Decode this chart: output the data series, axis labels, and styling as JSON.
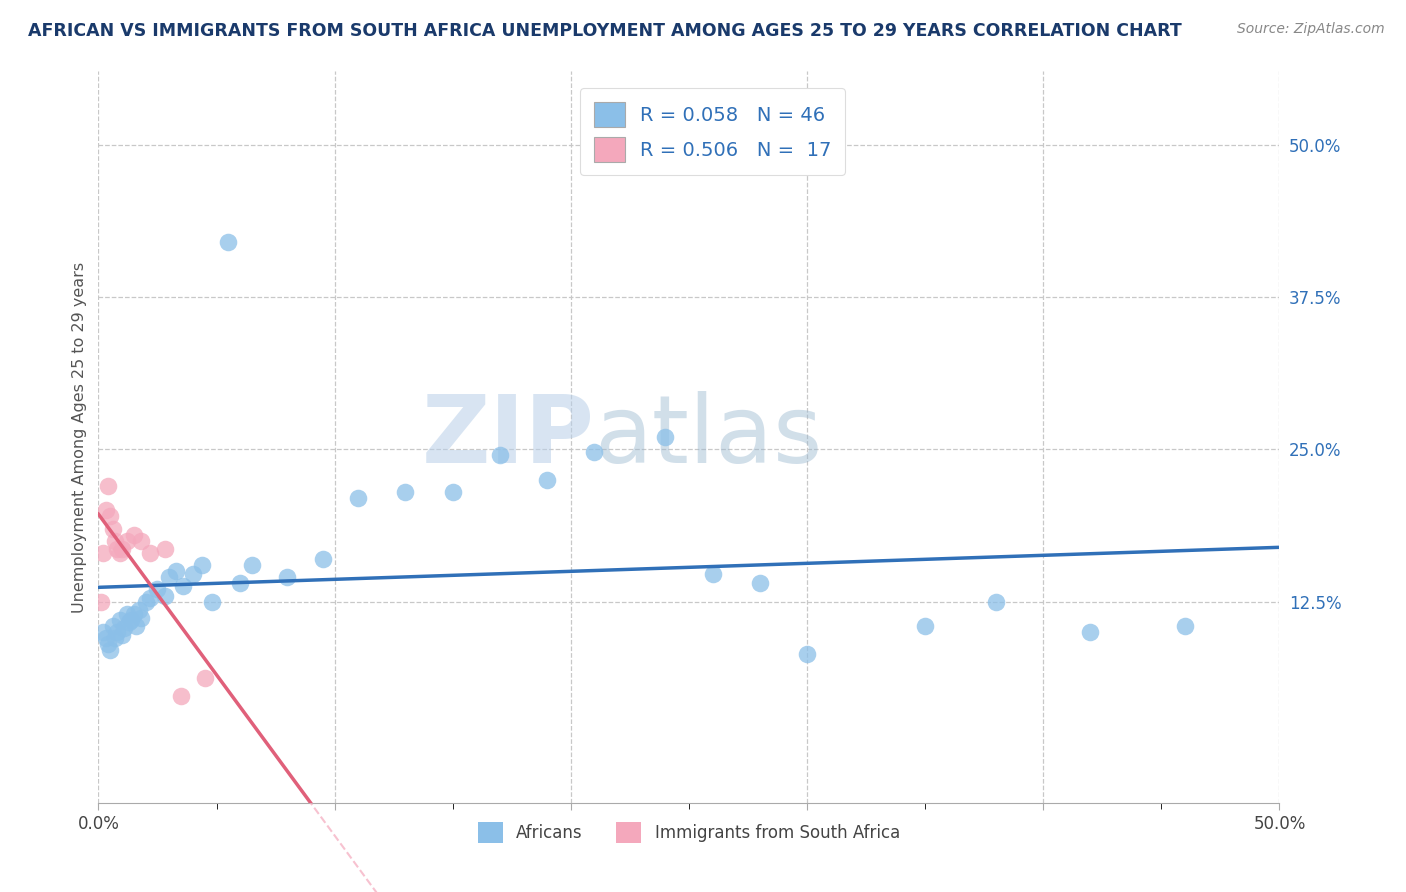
{
  "title": "AFRICAN VS IMMIGRANTS FROM SOUTH AFRICA UNEMPLOYMENT AMONG AGES 25 TO 29 YEARS CORRELATION CHART",
  "source": "Source: ZipAtlas.com",
  "ylabel": "Unemployment Among Ages 25 to 29 years",
  "xlim": [
    0.0,
    0.5
  ],
  "ylim": [
    -0.04,
    0.56
  ],
  "xtick_positions": [
    0.0,
    0.1,
    0.2,
    0.3,
    0.4,
    0.5
  ],
  "xtick_labels": [
    "0.0%",
    "",
    "",
    "",
    "",
    "50.0%"
  ],
  "ytick_positions": [
    0.125,
    0.25,
    0.375,
    0.5
  ],
  "ytick_labels": [
    "12.5%",
    "25.0%",
    "37.5%",
    "50.0%"
  ],
  "grid_color": "#c8c8c8",
  "background_color": "#ffffff",
  "africans_color": "#8bbfe8",
  "immigrants_color": "#f4a8bc",
  "africans_R": "0.058",
  "africans_N": "46",
  "immigrants_R": "0.506",
  "immigrants_N": "17",
  "africans_line_color": "#3070b8",
  "immigrants_line_color": "#e0607a",
  "watermark_zip": "ZIP",
  "watermark_atlas": "atlas",
  "legend_label_africans": "Africans",
  "legend_label_immigrants": "Immigrants from South Africa",
  "africans_x": [
    0.002,
    0.003,
    0.004,
    0.005,
    0.006,
    0.007,
    0.008,
    0.009,
    0.01,
    0.011,
    0.012,
    0.013,
    0.014,
    0.015,
    0.016,
    0.017,
    0.018,
    0.02,
    0.022,
    0.025,
    0.028,
    0.03,
    0.033,
    0.036,
    0.04,
    0.044,
    0.048,
    0.055,
    0.06,
    0.065,
    0.08,
    0.095,
    0.11,
    0.13,
    0.15,
    0.17,
    0.19,
    0.21,
    0.24,
    0.26,
    0.3,
    0.35,
    0.38,
    0.42,
    0.46,
    0.28
  ],
  "africans_y": [
    0.1,
    0.095,
    0.09,
    0.085,
    0.105,
    0.095,
    0.1,
    0.11,
    0.098,
    0.103,
    0.115,
    0.108,
    0.11,
    0.115,
    0.105,
    0.118,
    0.112,
    0.125,
    0.128,
    0.135,
    0.13,
    0.145,
    0.15,
    0.138,
    0.148,
    0.155,
    0.125,
    0.42,
    0.14,
    0.155,
    0.145,
    0.16,
    0.21,
    0.215,
    0.215,
    0.245,
    0.225,
    0.248,
    0.26,
    0.148,
    0.082,
    0.105,
    0.125,
    0.1,
    0.105,
    0.14
  ],
  "immigrants_x": [
    0.001,
    0.002,
    0.003,
    0.004,
    0.005,
    0.006,
    0.007,
    0.008,
    0.009,
    0.01,
    0.012,
    0.015,
    0.018,
    0.022,
    0.028,
    0.035,
    0.045
  ],
  "immigrants_y": [
    0.125,
    0.165,
    0.2,
    0.22,
    0.195,
    0.185,
    0.175,
    0.168,
    0.165,
    0.168,
    0.175,
    0.18,
    0.175,
    0.165,
    0.168,
    0.048,
    0.062
  ]
}
